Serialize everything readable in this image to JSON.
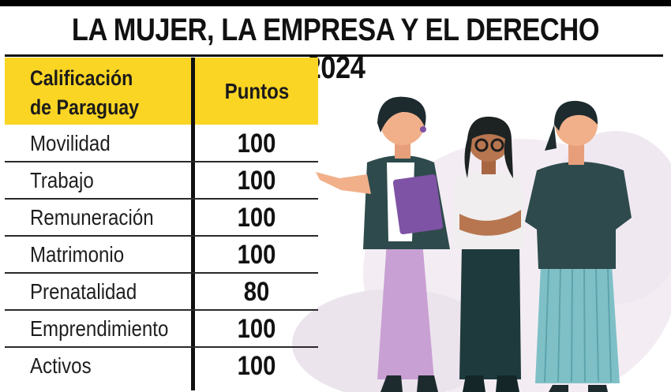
{
  "title": "LA MUJER, LA EMPRESA Y EL DERECHO 2024",
  "table": {
    "header_left_line1": "Calificación",
    "header_left_line2": "de Paraguay",
    "header_right": "Puntos"
  },
  "chart_data": {
    "type": "table",
    "title": "LA MUJER, LA EMPRESA Y EL DERECHO 2024",
    "columns": [
      "Calificación de Paraguay",
      "Puntos"
    ],
    "categories": [
      "Movilidad",
      "Trabajo",
      "Remuneración",
      "Matrimonio",
      "Prenatalidad",
      "Emprendimiento",
      "Activos"
    ],
    "values": [
      100,
      100,
      100,
      100,
      80,
      100,
      100
    ]
  },
  "colors": {
    "header_bg": "#fbd523",
    "rule": "#111111"
  }
}
